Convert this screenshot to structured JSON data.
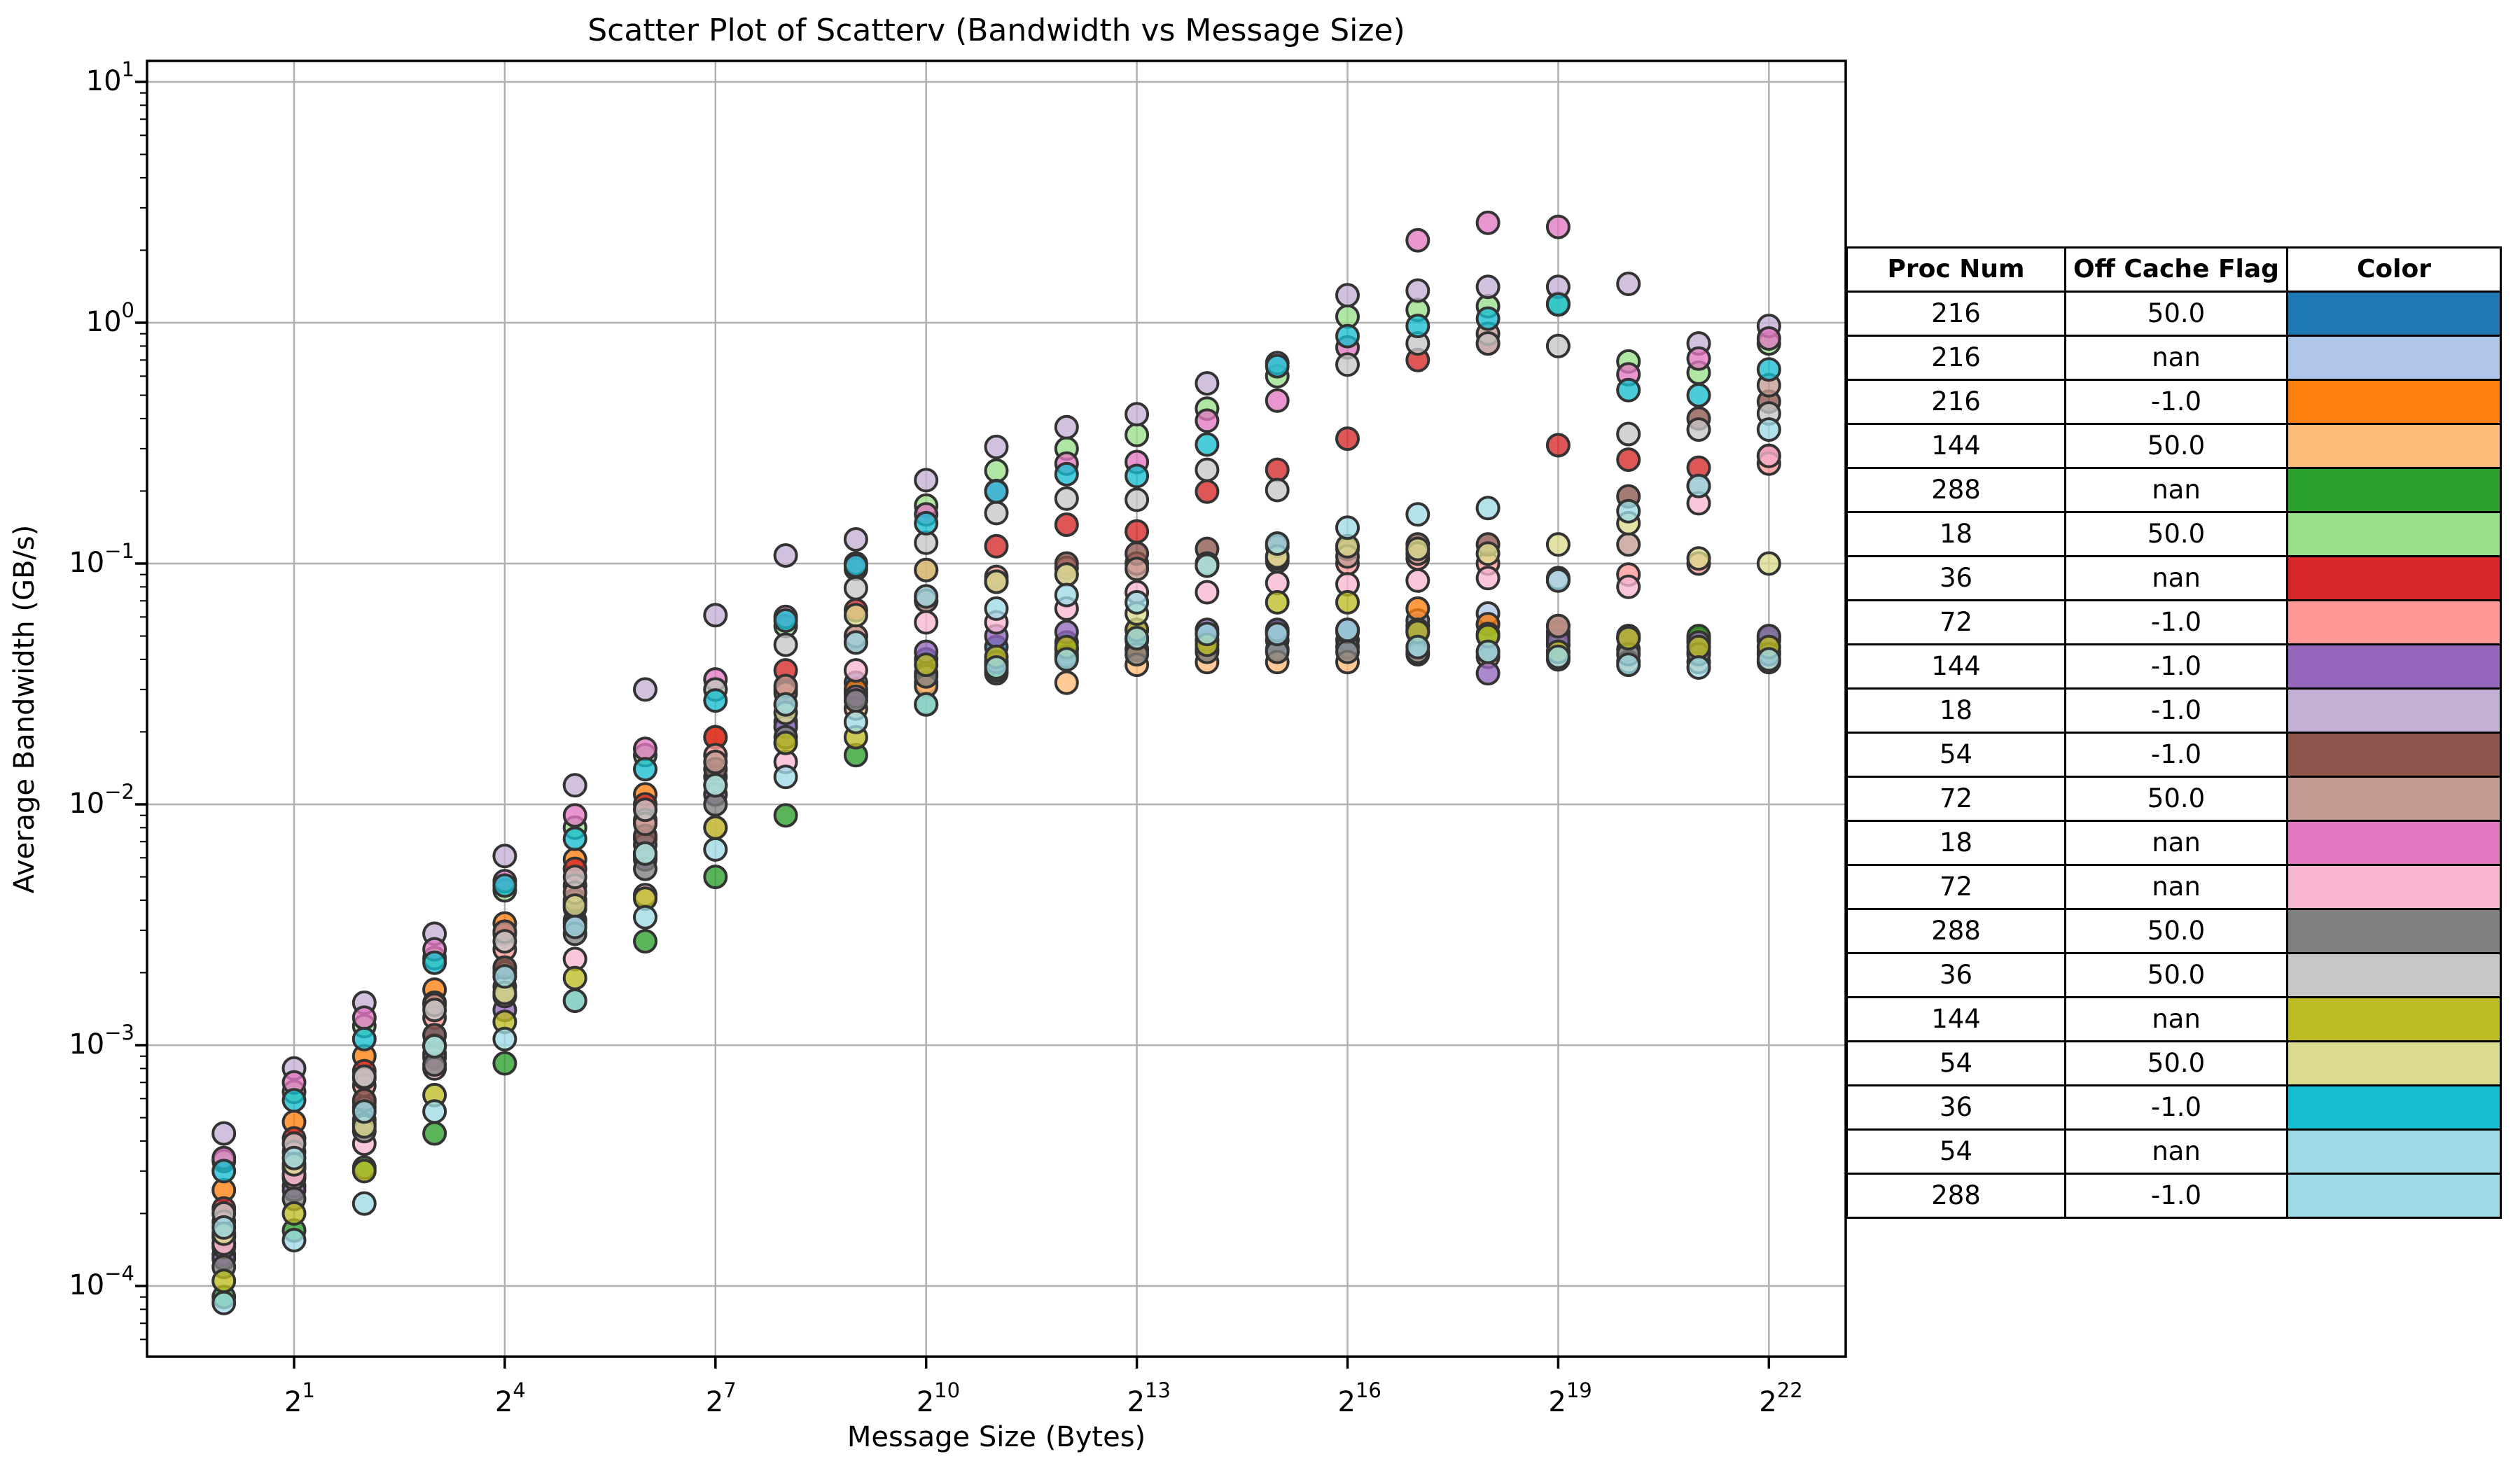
{
  "chart_data": {
    "type": "scatter",
    "title": "Scatter Plot of Scatterv (Bandwidth vs Message Size)",
    "xlabel": "Message Size (Bytes)",
    "ylabel": "Average Bandwidth (GB/s)",
    "x_scale": "log2",
    "y_scale": "log10",
    "grid": true,
    "x_tick_exponents": [
      1,
      4,
      7,
      10,
      13,
      16,
      19,
      22
    ],
    "y_tick_exponents": [
      1,
      0,
      -1,
      -2,
      -3,
      -4
    ],
    "xlim_pow2": [
      -1.1,
      23.1
    ],
    "ylim": [
      5.1e-05,
      12.5
    ],
    "message_sizes_pow2": [
      0,
      1,
      2,
      3,
      4,
      5,
      6,
      7,
      8,
      9,
      10,
      11,
      12,
      13,
      14,
      15,
      16,
      17,
      18,
      19,
      20,
      21,
      22
    ],
    "series": [
      {
        "proc_num": "216",
        "off_cache_flag": "50.0",
        "color": "#1f77b4",
        "values": [
          0.00016,
          0.00031,
          0.00058,
          0.0011,
          0.0021,
          0.0039,
          0.0072,
          0.013,
          0.022,
          0.032,
          0.04,
          0.045,
          0.047,
          0.048,
          0.048,
          0.048,
          0.048,
          0.055,
          0.056,
          0.05,
          0.049,
          0.048,
          0.048
        ]
      },
      {
        "proc_num": "216",
        "off_cache_flag": "nan",
        "color": "#aec7e8",
        "values": [
          0.00015,
          0.00029,
          0.00055,
          0.001,
          0.002,
          0.0037,
          0.0068,
          0.012,
          0.021,
          0.029,
          0.035,
          0.039,
          0.042,
          0.044,
          0.044,
          0.044,
          0.045,
          0.058,
          0.062,
          0.046,
          0.044,
          0.043,
          0.043
        ]
      },
      {
        "proc_num": "216",
        "off_cache_flag": "-1.0",
        "color": "#ff7f0e",
        "values": [
          0.00025,
          0.00048,
          0.0009,
          0.0017,
          0.0032,
          0.0059,
          0.011,
          0.019,
          0.03,
          0.03,
          0.032,
          0.038,
          0.044,
          0.044,
          0.048,
          0.052,
          0.053,
          0.065,
          0.056,
          0.052,
          0.05,
          0.049,
          0.049
        ]
      },
      {
        "proc_num": "144",
        "off_cache_flag": "50.0",
        "color": "#ffbb78",
        "values": [
          0.000135,
          0.00026,
          0.00049,
          0.00092,
          0.00175,
          0.0033,
          0.0061,
          0.011,
          0.018,
          0.025,
          0.031,
          0.035,
          0.032,
          0.038,
          0.039,
          0.039,
          0.039,
          0.042,
          0.041,
          0.04,
          0.039,
          0.039,
          0.039
        ]
      },
      {
        "proc_num": "288",
        "off_cache_flag": "nan",
        "color": "#2ca02c",
        "values": [
          9e-05,
          0.00017,
          0.00031,
          0.00043,
          0.00084,
          0.00153,
          0.0027,
          0.005,
          0.009,
          0.016,
          0.026,
          0.036,
          0.044,
          0.049,
          0.051,
          0.052,
          0.052,
          0.052,
          0.051,
          0.046,
          0.05,
          0.05,
          0.05
        ]
      },
      {
        "proc_num": "18",
        "off_cache_flag": "50.0",
        "color": "#98df8a",
        "values": [
          0.00033,
          0.00064,
          0.0012,
          0.0023,
          0.0044,
          0.008,
          0.016,
          0.03,
          0.055,
          0.095,
          0.174,
          0.243,
          0.3,
          0.342,
          0.44,
          0.6,
          1.06,
          1.13,
          1.17,
          1.2,
          0.69,
          0.62,
          0.82
        ]
      },
      {
        "proc_num": "36",
        "off_cache_flag": "nan",
        "color": "#d62728",
        "values": [
          0.00021,
          0.00041,
          0.00078,
          0.0015,
          0.0029,
          0.0054,
          0.01,
          0.019,
          0.036,
          0.064,
          0.094,
          0.118,
          0.145,
          0.136,
          0.199,
          0.245,
          0.33,
          0.7,
          0.82,
          0.31,
          0.27,
          0.25,
          0.28
        ]
      },
      {
        "proc_num": "72",
        "off_cache_flag": "-1.0",
        "color": "#ff9896",
        "values": [
          0.000185,
          0.00036,
          0.00068,
          0.0013,
          0.0025,
          0.0046,
          0.0086,
          0.016,
          0.029,
          0.05,
          0.073,
          0.088,
          0.096,
          0.1,
          0.1,
          0.102,
          0.1,
          0.105,
          0.1,
          0.085,
          0.09,
          0.1,
          0.26
        ]
      },
      {
        "proc_num": "144",
        "off_cache_flag": "-1.0",
        "color": "#9467bd",
        "values": [
          0.00013,
          0.00025,
          0.00047,
          0.00089,
          0.0014,
          0.0032,
          0.0059,
          0.011,
          0.021,
          0.028,
          0.043,
          0.05,
          0.052,
          0.053,
          0.053,
          0.053,
          0.053,
          0.053,
          0.035,
          0.048,
          0.049,
          0.047,
          0.05
        ]
      },
      {
        "proc_num": "18",
        "off_cache_flag": "-1.0",
        "color": "#c5b0d5",
        "values": [
          0.00043,
          0.0008,
          0.0015,
          0.0029,
          0.0061,
          0.012,
          0.03,
          0.061,
          0.108,
          0.126,
          0.222,
          0.305,
          0.368,
          0.417,
          0.56,
          0.68,
          1.3,
          1.36,
          1.41,
          1.41,
          1.45,
          0.82,
          0.97
        ]
      },
      {
        "proc_num": "54",
        "off_cache_flag": "-1.0",
        "color": "#8c564b",
        "values": [
          0.00016,
          0.00031,
          0.00059,
          0.0011,
          0.0021,
          0.004,
          0.0074,
          0.014,
          0.026,
          0.047,
          0.07,
          0.084,
          0.1,
          0.11,
          0.115,
          0.118,
          0.115,
          0.12,
          0.12,
          0.055,
          0.19,
          0.4,
          0.47
        ]
      },
      {
        "proc_num": "72",
        "off_cache_flag": "50.0",
        "color": "#c49c94",
        "values": [
          0.000145,
          0.00028,
          0.00073,
          0.00147,
          0.00296,
          0.0043,
          0.0083,
          0.015,
          0.031,
          0.05,
          0.07,
          0.084,
          0.09,
          0.095,
          0.1,
          0.105,
          0.107,
          0.11,
          0.9,
          0.055,
          0.12,
          0.21,
          0.55
        ]
      },
      {
        "proc_num": "18",
        "off_cache_flag": "nan",
        "color": "#e377c2",
        "values": [
          0.00034,
          0.0007,
          0.0013,
          0.0025,
          0.0048,
          0.009,
          0.017,
          0.033,
          0.06,
          0.1,
          0.16,
          0.2,
          0.26,
          0.264,
          0.392,
          0.475,
          0.79,
          2.2,
          2.6,
          2.5,
          0.61,
          0.71,
          0.86
        ]
      },
      {
        "proc_num": "72",
        "off_cache_flag": "nan",
        "color": "#f7b6d2",
        "values": [
          0.00015,
          0.00029,
          0.00039,
          0.0008,
          0.0016,
          0.00228,
          0.0042,
          0.008,
          0.015,
          0.036,
          0.057,
          0.057,
          0.065,
          0.076,
          0.076,
          0.083,
          0.082,
          0.085,
          0.087,
          0.087,
          0.08,
          0.178,
          0.28
        ]
      },
      {
        "proc_num": "288",
        "off_cache_flag": "50.0",
        "color": "#7f7f7f",
        "values": [
          0.00012,
          0.00023,
          0.00044,
          0.00083,
          0.0016,
          0.0029,
          0.0054,
          0.01,
          0.019,
          0.027,
          0.034,
          0.039,
          0.041,
          0.042,
          0.043,
          0.043,
          0.043,
          0.043,
          0.043,
          0.043,
          0.042,
          0.042,
          0.042
        ]
      },
      {
        "proc_num": "36",
        "off_cache_flag": "50.0",
        "color": "#c7c7c7",
        "values": [
          0.0002,
          0.00039,
          0.00074,
          0.0014,
          0.0027,
          0.005,
          0.0095,
          0.03,
          0.046,
          0.079,
          0.122,
          0.162,
          0.186,
          0.184,
          0.245,
          0.202,
          0.67,
          0.82,
          0.82,
          0.8,
          0.345,
          0.36,
          0.42
        ]
      },
      {
        "proc_num": "144",
        "off_cache_flag": "nan",
        "color": "#bcbd22",
        "values": [
          0.000105,
          0.0002,
          0.0003,
          0.00062,
          0.00125,
          0.0019,
          0.00406,
          0.008,
          0.018,
          0.019,
          0.038,
          0.041,
          0.045,
          0.053,
          0.046,
          0.069,
          0.069,
          0.052,
          0.05,
          0.043,
          0.049,
          0.045,
          0.045
        ]
      },
      {
        "proc_num": "54",
        "off_cache_flag": "50.0",
        "color": "#dbdb8d",
        "values": [
          0.000165,
          0.00032,
          0.00046,
          0.00099,
          0.00165,
          0.0038,
          0.00625,
          0.012,
          0.024,
          0.061,
          0.094,
          0.084,
          0.09,
          0.062,
          0.098,
          0.107,
          0.118,
          0.115,
          0.11,
          0.12,
          0.147,
          0.105,
          0.1
        ]
      },
      {
        "proc_num": "36",
        "off_cache_flag": "-1.0",
        "color": "#17becf",
        "values": [
          0.0003,
          0.00059,
          0.00106,
          0.0022,
          0.0046,
          0.0072,
          0.014,
          0.027,
          0.058,
          0.098,
          0.147,
          0.199,
          0.235,
          0.231,
          0.312,
          0.66,
          0.88,
          0.97,
          1.04,
          1.19,
          0.525,
          0.5,
          0.64
        ]
      },
      {
        "proc_num": "54",
        "off_cache_flag": "nan",
        "color": "#9edae5",
        "values": [
          0.000175,
          0.00034,
          0.00053,
          0.00099,
          0.00193,
          0.0031,
          0.00625,
          0.012,
          0.026,
          0.047,
          0.073,
          0.065,
          0.074,
          0.069,
          0.098,
          0.121,
          0.141,
          0.16,
          0.17,
          0.085,
          0.165,
          0.21,
          0.36
        ]
      },
      {
        "proc_num": "288",
        "off_cache_flag": "-1.0",
        "color": "#9edae5",
        "values": [
          8.5e-05,
          0.000155,
          0.00022,
          0.00053,
          0.00106,
          0.00153,
          0.0034,
          0.0065,
          0.013,
          0.022,
          0.026,
          0.037,
          0.04,
          0.049,
          0.051,
          0.051,
          0.053,
          0.045,
          0.043,
          0.041,
          0.038,
          0.037,
          0.04
        ]
      }
    ]
  },
  "legend_table": {
    "headers": [
      "Proc Num",
      "Off Cache Flag",
      "Color"
    ]
  },
  "style": {
    "grid_color": "#b0b0b0",
    "spine_color": "#000000",
    "dot_edge_color": "#333333",
    "dot_fill_opacity": 0.78
  }
}
